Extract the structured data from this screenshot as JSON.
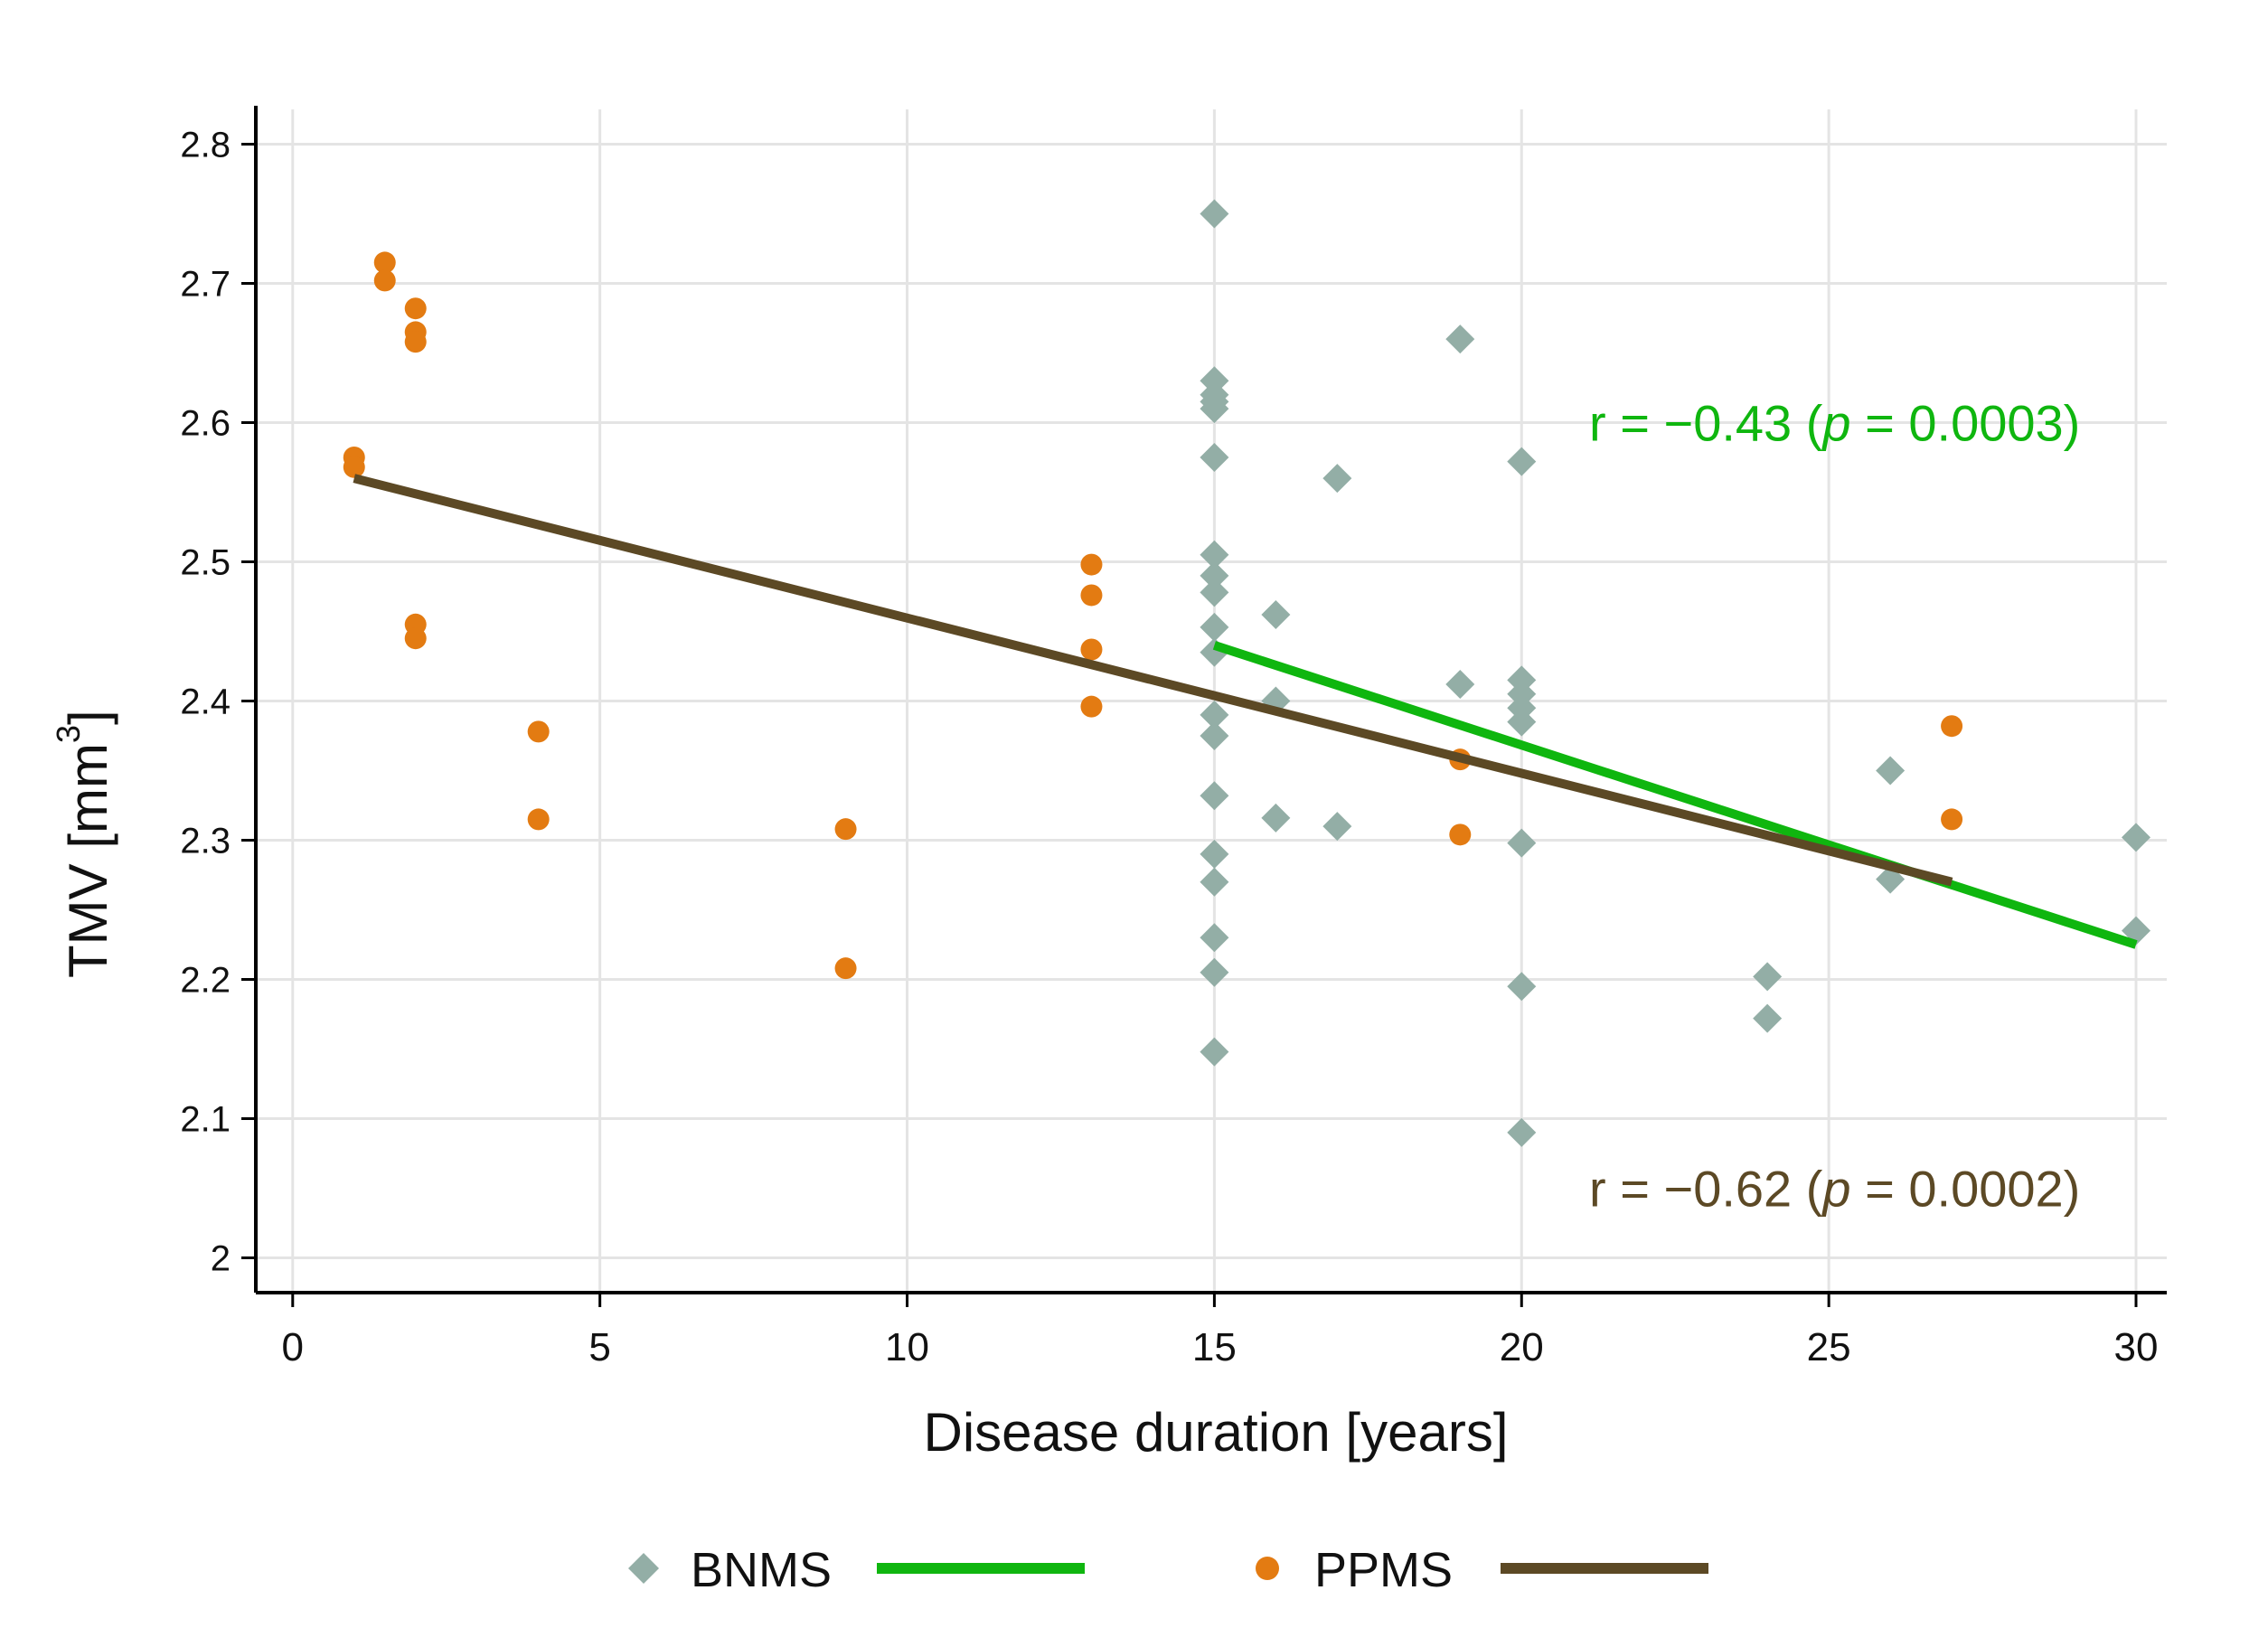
{
  "chart_data": {
    "type": "scatter",
    "title": "",
    "xlabel": "Disease duration [years]",
    "ylabel": "TMV [mm",
    "ylabel_superscript": "3",
    "ylabel_close": "]",
    "xlim": [
      -0.6,
      30.5
    ],
    "ylim": [
      1.975,
      2.825
    ],
    "xticks": [
      0,
      5,
      10,
      15,
      20,
      25,
      30
    ],
    "yticks": [
      2.0,
      2.1,
      2.2,
      2.3,
      2.4,
      2.5,
      2.6,
      2.7,
      2.8
    ],
    "ytick_labels": [
      "2",
      "2.1",
      "2.2",
      "2.3",
      "2.4",
      "2.5",
      "2.6",
      "2.7",
      "2.8"
    ],
    "grid": true,
    "legend_position": "bottom",
    "series": [
      {
        "name": "BNMS",
        "marker": "diamond",
        "color": "#93aea6",
        "points": [
          [
            15,
            2.75
          ],
          [
            15,
            2.63
          ],
          [
            15,
            2.62
          ],
          [
            15,
            2.615
          ],
          [
            15,
            2.61
          ],
          [
            15,
            2.575
          ],
          [
            15,
            2.505
          ],
          [
            15,
            2.49
          ],
          [
            15,
            2.478
          ],
          [
            15,
            2.453
          ],
          [
            15,
            2.435
          ],
          [
            15,
            2.39
          ],
          [
            15,
            2.375
          ],
          [
            15,
            2.332
          ],
          [
            15,
            2.29
          ],
          [
            15,
            2.27
          ],
          [
            15,
            2.23
          ],
          [
            15,
            2.205
          ],
          [
            15,
            2.148
          ],
          [
            16,
            2.462
          ],
          [
            16,
            2.4
          ],
          [
            16,
            2.316
          ],
          [
            17,
            2.56
          ],
          [
            17,
            2.31
          ],
          [
            19,
            2.66
          ],
          [
            19,
            2.412
          ],
          [
            20,
            2.572
          ],
          [
            20,
            2.415
          ],
          [
            20,
            2.405
          ],
          [
            20,
            2.395
          ],
          [
            20,
            2.385
          ],
          [
            20,
            2.298
          ],
          [
            20,
            2.195
          ],
          [
            20,
            2.09
          ],
          [
            24,
            2.202
          ],
          [
            24,
            2.172
          ],
          [
            26,
            2.35
          ],
          [
            26,
            2.272
          ],
          [
            30,
            2.302
          ],
          [
            30,
            2.235
          ]
        ]
      },
      {
        "name": "PPMS",
        "marker": "circle",
        "color": "#e37b12",
        "points": [
          [
            1,
            2.575
          ],
          [
            1,
            2.568
          ],
          [
            1.5,
            2.715
          ],
          [
            1.5,
            2.702
          ],
          [
            2,
            2.682
          ],
          [
            2,
            2.665
          ],
          [
            2,
            2.658
          ],
          [
            2,
            2.455
          ],
          [
            2,
            2.445
          ],
          [
            4,
            2.378
          ],
          [
            4,
            2.315
          ],
          [
            9,
            2.308
          ],
          [
            9,
            2.208
          ],
          [
            13,
            2.498
          ],
          [
            13,
            2.476
          ],
          [
            13,
            2.437
          ],
          [
            13,
            2.396
          ],
          [
            19,
            2.358
          ],
          [
            19,
            2.304
          ],
          [
            27,
            2.382
          ],
          [
            27,
            2.315
          ]
        ]
      }
    ],
    "fit_lines": [
      {
        "name": "BNMS",
        "color": "#0fb60f",
        "x": [
          15,
          30
        ],
        "y": [
          2.44,
          2.225
        ]
      },
      {
        "name": "PPMS",
        "color": "#5c4925",
        "x": [
          1,
          27
        ],
        "y": [
          2.56,
          2.27
        ]
      }
    ],
    "annotations": [
      {
        "series": "BNMS",
        "prefix": "r = −0.43 (",
        "italic": "p",
        "suffix": " = 0.0003)",
        "color": "#0fb60f",
        "anchor_x": 21.1,
        "anchor_y": 2.6
      },
      {
        "series": "PPMS",
        "prefix": "r = −0.62 (",
        "italic": "p",
        "suffix": " = 0.0002)",
        "color": "#5c4925",
        "anchor_x": 21.1,
        "anchor_y": 2.05
      }
    ],
    "legend": [
      {
        "label": "BNMS",
        "marker": "diamond",
        "marker_color": "#93aea6",
        "line_color": "#0fb60f"
      },
      {
        "label": "PPMS",
        "marker": "circle",
        "marker_color": "#e37b12",
        "line_color": "#5c4925"
      }
    ]
  }
}
